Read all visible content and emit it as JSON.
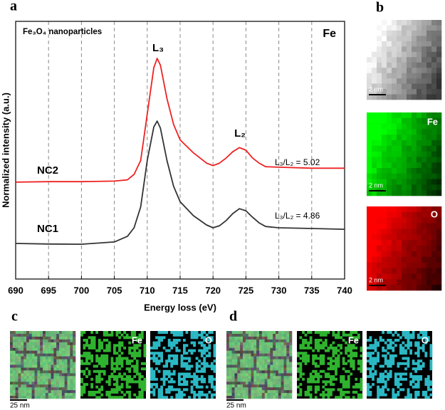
{
  "chart_data": {
    "type": "line",
    "x_label": "Energy loss (eV)",
    "y_label": "Normalized intensity (a.u.)",
    "x": [
      690,
      695,
      700,
      705,
      707,
      708,
      709,
      710,
      711,
      711.5,
      712,
      713,
      714,
      715,
      717,
      719,
      720,
      721,
      722,
      723,
      724,
      725,
      726,
      727,
      728,
      730,
      735,
      740
    ],
    "series": [
      {
        "name": "NC2",
        "color": "#ee2222",
        "values": [
          37.6,
          37.8,
          37.8,
          38,
          38.5,
          40.6,
          46,
          64,
          82,
          85.6,
          83,
          70,
          60,
          54,
          49,
          45,
          44,
          45,
          47,
          49.4,
          51,
          50,
          47,
          45,
          43.6,
          43.4,
          43,
          43
        ]
      },
      {
        "name": "NC1",
        "color": "#333333",
        "values": [
          13.8,
          13.6,
          13.5,
          14.4,
          16.6,
          19.9,
          28,
          46,
          59,
          61.3,
          58.6,
          46,
          36,
          30,
          24.6,
          21,
          19.9,
          20.7,
          22.7,
          25.4,
          27.3,
          26.5,
          24,
          21.8,
          20.4,
          19.9,
          19.6,
          19.3
        ]
      }
    ],
    "xlim": [
      690,
      740
    ],
    "xticks": [
      690,
      695,
      700,
      705,
      710,
      715,
      720,
      725,
      730,
      735,
      740
    ],
    "ylim": [
      0,
      100
    ],
    "grid": true,
    "annotations": [
      "Fe₃O₄ nanoparticles",
      "Fe",
      "L₃",
      "L₂",
      "L₃/L₂ = 5.02",
      "L₃/L₂ = 4.86"
    ]
  },
  "panel_labels": [
    "a",
    "b",
    "c",
    "d"
  ],
  "panel_b": {
    "maps": [
      "Fe",
      "O"
    ],
    "scale_bar": "2 nm"
  },
  "panel_c": {
    "maps": [
      "Fe",
      "O"
    ],
    "scale_bar": "25 nm"
  },
  "panel_d": {
    "maps": [
      "Fe",
      "O"
    ],
    "scale_bar": "25 nm"
  }
}
